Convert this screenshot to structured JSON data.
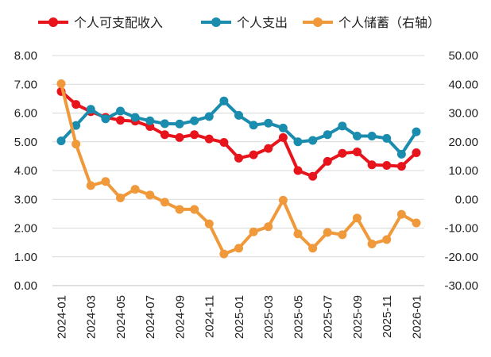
{
  "chart_data": {
    "type": "line",
    "x": [
      "2024-01",
      "2024-02",
      "2024-03",
      "2024-04",
      "2024-05",
      "2024-06",
      "2024-07",
      "2024-08",
      "2024-09",
      "2024-10",
      "2024-11",
      "2024-12",
      "2025-01",
      "2025-02",
      "2025-03",
      "2025-04",
      "2025-05",
      "2025-06",
      "2025-07",
      "2025-08",
      "2025-09",
      "2025-10",
      "2025-11",
      "2025-12",
      "2026-01"
    ],
    "xticks": [
      "2024-01",
      "2024-03",
      "2024-05",
      "2024-07",
      "2024-09",
      "2024-11",
      "2025-01",
      "2025-03",
      "2025-05",
      "2025-07",
      "2025-09",
      "2025-11",
      "2026-01"
    ],
    "ylim_left": [
      0,
      8
    ],
    "ylim_right": [
      -30,
      50
    ],
    "yticks_left": [
      "0.00",
      "1.00",
      "2.00",
      "3.00",
      "4.00",
      "5.00",
      "6.00",
      "7.00",
      "8.00"
    ],
    "yticks_right": [
      "-30.00",
      "-20.00",
      "-10.00",
      "0.00",
      "10.00",
      "20.00",
      "30.00",
      "40.00",
      "50.00"
    ],
    "grid": true,
    "legend_position": "top",
    "series": [
      {
        "name": "个人可支配收入",
        "axis": "left",
        "color": "#e8141c",
        "values": [
          6.75,
          6.3,
          6.05,
          5.85,
          5.75,
          5.72,
          5.53,
          5.25,
          5.15,
          5.25,
          5.1,
          4.98,
          4.43,
          4.55,
          4.77,
          5.15,
          4.0,
          3.8,
          4.32,
          4.6,
          4.65,
          4.2,
          4.18,
          4.15,
          4.62
        ]
      },
      {
        "name": "个人支出",
        "axis": "left",
        "color": "#1a8cae",
        "values": [
          5.03,
          5.57,
          6.13,
          5.8,
          6.07,
          5.85,
          5.73,
          5.63,
          5.62,
          5.73,
          5.88,
          6.42,
          5.92,
          5.58,
          5.65,
          5.48,
          5.0,
          5.05,
          5.25,
          5.55,
          5.2,
          5.2,
          5.12,
          4.57,
          5.35
        ]
      },
      {
        "name": "个人储蓄（右轴）",
        "axis": "right",
        "color": "#f0993b",
        "values": [
          40.2,
          19.2,
          4.8,
          6.2,
          0.5,
          3.5,
          1.5,
          -1.0,
          -3.5,
          -3.5,
          -8.5,
          -19.0,
          -17.0,
          -11.3,
          -9.5,
          -0.3,
          -12.0,
          -17.0,
          -11.5,
          -12.3,
          -6.5,
          -15.5,
          -14.0,
          -5.2,
          -8.2
        ]
      }
    ]
  }
}
